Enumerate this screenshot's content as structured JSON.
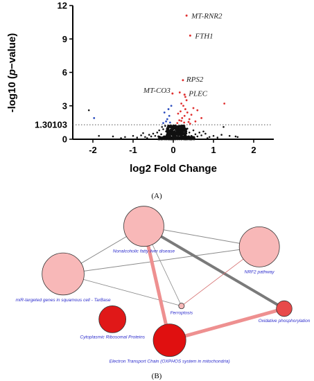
{
  "panel_a_label": "(A)",
  "panel_b_label": "(B)",
  "chart_data": [
    {
      "type": "scatter",
      "title": "",
      "xlabel": "log2 Fold Change",
      "ylabel": "-log10 (p-value)",
      "ylabel_parts": [
        "-log10 (",
        "p",
        "−value)"
      ],
      "xlim": [
        -2.5,
        2.5
      ],
      "ylim": [
        0,
        12
      ],
      "x_ticks": [
        -2,
        -1,
        0,
        1,
        2
      ],
      "y_ticks": [
        0,
        3,
        6,
        9,
        12
      ],
      "threshold": {
        "y": 1.30103,
        "label": "1.30103",
        "style": "dotted"
      },
      "colors": {
        "up": "#e03030",
        "down": "#2e4fbf",
        "ns": "#111111"
      },
      "labeled_points": [
        {
          "x": 0.33,
          "y": 11.1,
          "label": "MT-RNR2",
          "group": "up"
        },
        {
          "x": 0.42,
          "y": 9.3,
          "label": "FTH1",
          "group": "up"
        },
        {
          "x": 0.24,
          "y": 5.3,
          "label": "RPS2",
          "group": "up"
        },
        {
          "x": -0.02,
          "y": 4.1,
          "label": "MT-CO3",
          "group": "up"
        },
        {
          "x": 0.28,
          "y": 4.0,
          "label": "PLEC",
          "group": "up"
        }
      ],
      "up_points": [
        [
          0.2,
          3.2
        ],
        [
          0.25,
          3.0
        ],
        [
          0.3,
          2.7
        ],
        [
          0.18,
          2.5
        ],
        [
          0.35,
          2.4
        ],
        [
          0.28,
          2.1
        ],
        [
          0.22,
          1.9
        ],
        [
          0.4,
          1.8
        ],
        [
          0.15,
          1.7
        ],
        [
          0.45,
          2.2
        ],
        [
          0.33,
          3.5
        ],
        [
          0.12,
          2.3
        ],
        [
          0.5,
          2.8
        ],
        [
          0.6,
          2.6
        ],
        [
          0.55,
          1.6
        ],
        [
          0.27,
          1.5
        ],
        [
          0.38,
          1.55
        ],
        [
          0.2,
          1.65
        ],
        [
          0.1,
          1.45
        ],
        [
          0.3,
          3.8
        ],
        [
          0.7,
          1.9
        ],
        [
          0.42,
          1.4
        ],
        [
          1.27,
          3.2
        ],
        [
          0.16,
          4.2
        ]
      ],
      "down_points": [
        [
          -0.1,
          2.1
        ],
        [
          -0.15,
          1.8
        ],
        [
          -0.22,
          2.4
        ],
        [
          -0.08,
          1.5
        ],
        [
          -0.18,
          1.6
        ],
        [
          -0.05,
          3.0
        ],
        [
          -0.12,
          2.7
        ],
        [
          -0.25,
          1.45
        ],
        [
          -1.97,
          1.9
        ]
      ],
      "ns_points": [
        [
          -2.1,
          2.6
        ],
        [
          -1.85,
          0.3
        ],
        [
          -1.5,
          0.25
        ],
        [
          -1.2,
          0.2
        ],
        [
          -1.0,
          0.3
        ],
        [
          -0.9,
          0.15
        ],
        [
          -0.8,
          0.35
        ],
        [
          -0.7,
          0.2
        ],
        [
          -0.6,
          0.4
        ],
        [
          -0.55,
          0.25
        ],
        [
          -0.5,
          0.5
        ],
        [
          -0.45,
          0.3
        ],
        [
          -0.4,
          0.6
        ],
        [
          -0.35,
          0.8
        ],
        [
          -0.3,
          0.45
        ],
        [
          -0.28,
          1.1
        ],
        [
          -0.25,
          0.9
        ],
        [
          -0.2,
          1.2
        ],
        [
          -0.18,
          0.7
        ],
        [
          -0.15,
          0.5
        ],
        [
          -0.12,
          1.0
        ],
        [
          -0.1,
          0.3
        ],
        [
          -0.08,
          0.8
        ],
        [
          -0.05,
          1.15
        ],
        [
          -0.02,
          0.6
        ],
        [
          0.0,
          0.9
        ],
        [
          0.02,
          1.2
        ],
        [
          0.05,
          0.4
        ],
        [
          0.08,
          0.7
        ],
        [
          0.1,
          1.1
        ],
        [
          0.12,
          0.5
        ],
        [
          0.15,
          0.9
        ],
        [
          0.18,
          1.2
        ],
        [
          0.2,
          0.6
        ],
        [
          0.22,
          0.3
        ],
        [
          0.25,
          1.0
        ],
        [
          0.28,
          0.75
        ],
        [
          0.3,
          0.4
        ],
        [
          0.35,
          0.95
        ],
        [
          0.4,
          0.6
        ],
        [
          0.45,
          0.3
        ],
        [
          0.5,
          0.8
        ],
        [
          0.55,
          0.45
        ],
        [
          0.6,
          0.25
        ],
        [
          0.65,
          0.6
        ],
        [
          0.7,
          0.35
        ],
        [
          0.8,
          0.5
        ],
        [
          0.9,
          0.2
        ],
        [
          1.0,
          0.3
        ],
        [
          1.1,
          0.15
        ],
        [
          1.2,
          0.4
        ],
        [
          1.25,
          1.1
        ],
        [
          1.4,
          0.3
        ],
        [
          1.55,
          0.25
        ],
        [
          1.6,
          0.2
        ],
        [
          -1.3,
          0.1
        ],
        [
          -0.75,
          0.55
        ],
        [
          0.75,
          0.7
        ],
        [
          -0.65,
          0.1
        ],
        [
          0.85,
          0.1
        ]
      ]
    },
    {
      "type": "network",
      "nodes": [
        {
          "id": "nafld",
          "label": "Nonalcoholic fatty liver disease",
          "color": "#f8b8b8",
          "cx": 0.458,
          "cy": 0.594,
          "r": 0.064
        },
        {
          "id": "nrf2",
          "label": "NRF2 pathway",
          "color": "#f8b8b8",
          "cx": 0.826,
          "cy": 0.648,
          "r": 0.064
        },
        {
          "id": "mir",
          "label": "miR-targeted genes in squamous cell - TarBase",
          "color": "#f8b8b8",
          "cx": 0.201,
          "cy": 0.719,
          "r": 0.067
        },
        {
          "id": "ferro",
          "label": "Ferroptosis",
          "color": "#f8b8b8",
          "cx": 0.578,
          "cy": 0.803,
          "r": 0.009
        },
        {
          "id": "oxphos",
          "label": "Oxidative phosphorylation",
          "color": "#e84a4a",
          "cx": 0.905,
          "cy": 0.81,
          "r": 0.025
        },
        {
          "id": "ribo",
          "label": "Cytoplasmic Ribosomal Proteins",
          "color": "#e01818",
          "cx": 0.358,
          "cy": 0.838,
          "r": 0.043
        },
        {
          "id": "etc",
          "label": "Electron Transport Chain (OXPHOS system in mitochondria)",
          "color": "#e01010",
          "cx": 0.54,
          "cy": 0.893,
          "r": 0.052
        }
      ],
      "edges": [
        {
          "from": "nafld",
          "to": "mir",
          "color": "#8a8a8a",
          "width": 1
        },
        {
          "from": "nafld",
          "to": "nrf2",
          "color": "#8a8a8a",
          "width": 1
        },
        {
          "from": "mir",
          "to": "nrf2",
          "color": "#8a8a8a",
          "width": 1
        },
        {
          "from": "mir",
          "to": "ferro",
          "color": "#8a8a8a",
          "width": 0.8
        },
        {
          "from": "nafld",
          "to": "ferro",
          "color": "#8a8a8a",
          "width": 0.8
        },
        {
          "from": "nafld",
          "to": "oxphos",
          "color": "#7a7a7a",
          "width": 4
        },
        {
          "from": "nafld",
          "to": "etc",
          "color": "#ee9090",
          "width": 5
        },
        {
          "from": "nrf2",
          "to": "ferro",
          "color": "#d46a6a",
          "width": 0.8
        },
        {
          "from": "etc",
          "to": "oxphos",
          "color": "#ee9090",
          "width": 5
        }
      ]
    }
  ]
}
